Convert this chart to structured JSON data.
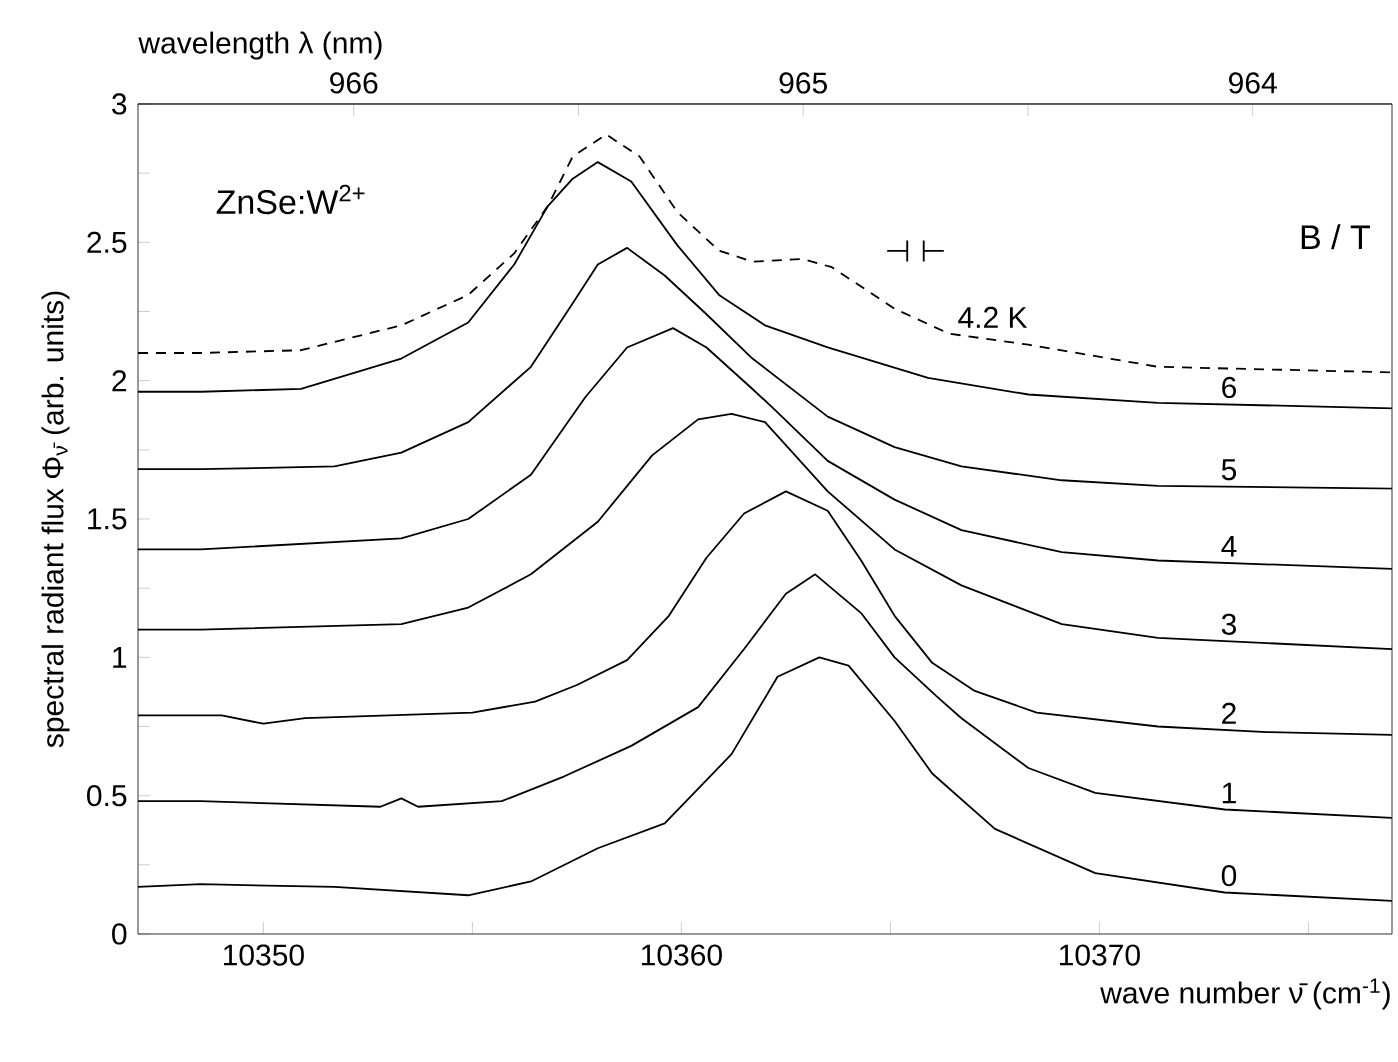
{
  "chart_data": {
    "type": "line",
    "xlabel": "wave number  ν̄ (cm$^{-1}$)",
    "ylabel": "spectral radiant flux  Φ$_{ν̄}$ (arb. units)",
    "x2label": "wavelength  λ (nm)",
    "xlim": [
      10347,
      10377
    ],
    "xticks": [
      10350,
      {
        "value": 10355,
        "label": null
      },
      10360,
      {
        "value": 10365,
        "label": null
      },
      10370,
      {
        "value": 10375,
        "label": null
      }
    ],
    "x2lim": [
      966.48,
      963.69
    ],
    "x2ticks": [
      966,
      {
        "value": 965.5,
        "label": null
      },
      965,
      {
        "value": 964.5,
        "label": null
      },
      964
    ],
    "ylim": [
      0,
      3
    ],
    "yticks": [
      0,
      {
        "value": 0.25,
        "label": null
      },
      0.5,
      {
        "value": 0.75,
        "label": null
      },
      1,
      {
        "value": 1.25,
        "label": null
      },
      1.5,
      {
        "value": 1.75,
        "label": null
      },
      2,
      {
        "value": 2.25,
        "label": null
      },
      2.5,
      {
        "value": 2.75,
        "label": null
      },
      3
    ],
    "marker": "none",
    "annotations": [
      "ZnSe:W$^{2+}$",
      "B / T",
      "⊣ ⊢"
    ],
    "series": [
      {
        "name": "4.2 K",
        "color": "#000000",
        "line_style": "dashed",
        "x": [
          10347,
          10348.5,
          10350.9,
          10353.3,
          10354.9,
          10356,
          10356.8,
          10357.4,
          10358.2,
          10359,
          10359.9,
          10360.9,
          10361.7,
          10362.9,
          10363.6,
          10365.1,
          10366.4,
          10368.3,
          10371.4,
          10377
        ],
        "values": [
          2.1,
          2.1,
          2.11,
          2.2,
          2.31,
          2.46,
          2.63,
          2.81,
          2.89,
          2.81,
          2.61,
          2.47,
          2.43,
          2.44,
          2.41,
          2.26,
          2.17,
          2.13,
          2.05,
          2.03
        ]
      },
      {
        "name": "6",
        "color": "#000000",
        "line_style": "solid",
        "x": [
          10347,
          10348.5,
          10350.9,
          10353.3,
          10354.9,
          10356,
          10356.8,
          10357.4,
          10358,
          10358.8,
          10359.9,
          10360.9,
          10362,
          10363.5,
          10365.9,
          10368.3,
          10371.4,
          10377
        ],
        "values": [
          1.96,
          1.96,
          1.97,
          2.08,
          2.21,
          2.42,
          2.63,
          2.73,
          2.79,
          2.72,
          2.49,
          2.31,
          2.2,
          2.12,
          2.01,
          1.95,
          1.92,
          1.9
        ]
      },
      {
        "name": "5",
        "color": "#000000",
        "line_style": "solid",
        "x": [
          10347,
          10348.5,
          10351.7,
          10353.3,
          10354.9,
          10356.4,
          10357.4,
          10358,
          10358.7,
          10359.6,
          10360.6,
          10361.7,
          10363.5,
          10365.1,
          10366.7,
          10369.1,
          10371.4,
          10377
        ],
        "values": [
          1.68,
          1.68,
          1.69,
          1.74,
          1.85,
          2.05,
          2.28,
          2.42,
          2.48,
          2.38,
          2.24,
          2.08,
          1.87,
          1.76,
          1.69,
          1.64,
          1.62,
          1.61
        ]
      },
      {
        "name": "4",
        "color": "#000000",
        "line_style": "solid",
        "x": [
          10347,
          10348.5,
          10353.3,
          10354.9,
          10356.4,
          10357.7,
          10358.7,
          10359.8,
          10360.6,
          10361.7,
          10362.2,
          10363.5,
          10365.1,
          10366.7,
          10369.1,
          10371.4,
          10377
        ],
        "values": [
          1.39,
          1.39,
          1.43,
          1.5,
          1.66,
          1.94,
          2.12,
          2.19,
          2.12,
          1.97,
          1.9,
          1.71,
          1.57,
          1.46,
          1.38,
          1.35,
          1.32
        ]
      },
      {
        "name": "3",
        "color": "#000000",
        "line_style": "solid",
        "x": [
          10347,
          10348.5,
          10353.3,
          10354.9,
          10356.4,
          10358,
          10359.3,
          10360.4,
          10361.2,
          10362,
          10363.5,
          10365.1,
          10366.7,
          10369.1,
          10371.4,
          10377
        ],
        "values": [
          1.1,
          1.1,
          1.12,
          1.18,
          1.3,
          1.49,
          1.73,
          1.86,
          1.88,
          1.85,
          1.6,
          1.39,
          1.26,
          1.12,
          1.07,
          1.03
        ]
      },
      {
        "name": "2",
        "color": "#000000",
        "line_style": "solid",
        "x": [
          10347,
          10349,
          10350,
          10351,
          10353,
          10355,
          10356.5,
          10357.5,
          10358.7,
          10359.7,
          10360.6,
          10361.5,
          10362.5,
          10363.5,
          10364.3,
          10365.1,
          10366,
          10367,
          10368.5,
          10371.4,
          10374,
          10377
        ],
        "values": [
          0.79,
          0.79,
          0.76,
          0.78,
          0.79,
          0.8,
          0.84,
          0.9,
          0.99,
          1.15,
          1.36,
          1.52,
          1.6,
          1.53,
          1.35,
          1.15,
          0.98,
          0.88,
          0.8,
          0.75,
          0.73,
          0.72
        ]
      },
      {
        "name": "1",
        "color": "#000000",
        "line_style": "solid",
        "x": [
          10347,
          10348.5,
          10352.8,
          10353.3,
          10353.7,
          10355.7,
          10357.2,
          10358.8,
          10360.4,
          10361.5,
          10362.5,
          10363.2,
          10364.3,
          10365.1,
          10366.1,
          10366.7,
          10368.3,
          10369.9,
          10373,
          10377
        ],
        "values": [
          0.48,
          0.48,
          0.46,
          0.49,
          0.46,
          0.48,
          0.57,
          0.68,
          0.82,
          1.03,
          1.23,
          1.3,
          1.16,
          1.0,
          0.86,
          0.78,
          0.6,
          0.51,
          0.45,
          0.42
        ]
      },
      {
        "name": "0",
        "color": "#000000",
        "line_style": "solid",
        "x": [
          10347,
          10348.5,
          10351.7,
          10354.9,
          10356.4,
          10358,
          10359.6,
          10361.2,
          10362.3,
          10363.3,
          10364,
          10365.1,
          10366,
          10367.5,
          10369.9,
          10373,
          10377
        ],
        "values": [
          0.17,
          0.18,
          0.17,
          0.14,
          0.19,
          0.31,
          0.4,
          0.65,
          0.93,
          1.0,
          0.97,
          0.77,
          0.58,
          0.38,
          0.22,
          0.15,
          0.12
        ]
      }
    ]
  }
}
